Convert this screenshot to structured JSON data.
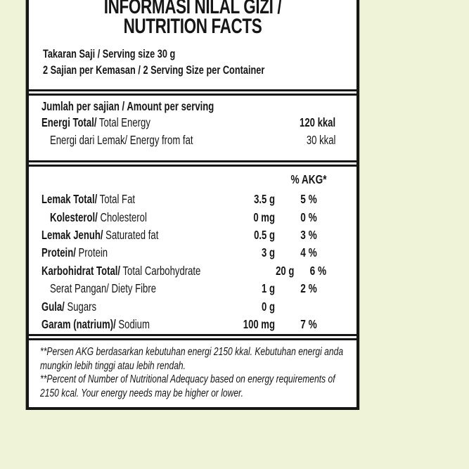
{
  "colors": {
    "page_background": "#eff4d8",
    "label_background": "#ffffff",
    "ink": "#161616"
  },
  "label": {
    "title_line1": "INFORMASI NILAL GIZI /",
    "title_line2": "NUTRITION FACTS",
    "serving_size": "Takaran Saji / Serving size 30 g",
    "servings_per_container": "2 Sajian per Kemasan / 2 Serving Size per Container",
    "per_serving": {
      "heading": "Jumlah per sajian / Amount per serving",
      "rows": [
        {
          "bold": "Energi Total/",
          "reg": " Total Energy",
          "value": "120 kkal"
        },
        {
          "bold": "",
          "reg": "Energi dari Lemak/ Energy from fat",
          "value": "30 kkal"
        }
      ]
    },
    "nutrients": {
      "akg_header": "% AKG*",
      "rows": [
        {
          "bold": "Lemak Total/",
          "reg": " Total Fat",
          "amount": "3.5 g",
          "pct": "5 %"
        },
        {
          "bold": "Kolesterol/",
          "reg": " Cholesterol",
          "amount": "0 mg",
          "pct": "0 %"
        },
        {
          "bold": "Lemak Jenuh/",
          "reg": " Saturated fat",
          "amount": "0.5 g",
          "pct": "3 %"
        },
        {
          "bold": "Protein/",
          "reg": " Protein",
          "amount": "3 g",
          "pct": "4 %"
        },
        {
          "bold": "Karbohidrat Total/",
          "reg": " Total Carbohydrate",
          "amount": "20 g",
          "pct": "6 %"
        },
        {
          "bold": "",
          "reg": "Serat Pangan/ Diety Fibre",
          "amount": "1 g",
          "pct": "2 %"
        },
        {
          "bold": "Gula/",
          "reg": " Sugars",
          "amount": "0 g",
          "pct": ""
        },
        {
          "bold": "Garam (natrium)/",
          "reg": " Sodium",
          "amount": "100 mg",
          "pct": "7 %"
        }
      ]
    },
    "footnotes": [
      "**Persen AKG berdasarkan kebutuhan energi 2150 kkal. Kebutuhan energi anda mungkin lebih tinggi atau lebih rendah.",
      "**Percent of Number of Nutritional Adequacy based on energy requirements of 2150 kcal. Your energy needs may be higher or lower."
    ]
  }
}
